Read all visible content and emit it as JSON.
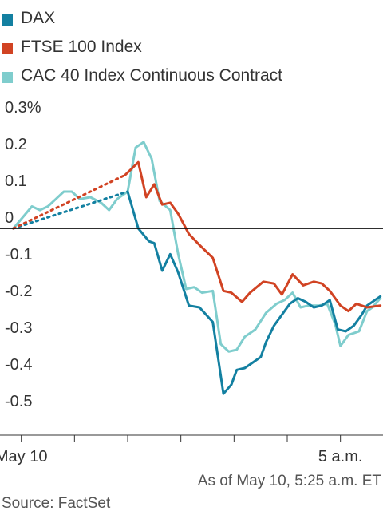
{
  "chart_data": {
    "type": "line",
    "title": "",
    "xlabel": "",
    "ylabel": "",
    "ylim": [
      -0.53,
      0.3
    ],
    "y_ticks": [
      {
        "value": 0.3,
        "label": "0.3%"
      },
      {
        "value": 0.2,
        "label": "0.2"
      },
      {
        "value": 0.1,
        "label": "0.1"
      },
      {
        "value": 0.0,
        "label": "0"
      },
      {
        "value": -0.1,
        "label": "-0.1"
      },
      {
        "value": -0.2,
        "label": "-0.2"
      },
      {
        "value": -0.3,
        "label": "-0.3"
      },
      {
        "value": -0.4,
        "label": "-0.4"
      },
      {
        "value": -0.5,
        "label": "-0.5"
      }
    ],
    "x_ticks": [
      {
        "t": 0,
        "label": "May 10"
      },
      {
        "t": 1,
        "label": ""
      },
      {
        "t": 2,
        "label": ""
      },
      {
        "t": 3,
        "label": ""
      },
      {
        "t": 4,
        "label": ""
      },
      {
        "t": 5,
        "label": ""
      },
      {
        "t": 6,
        "label": "5 a.m."
      }
    ],
    "xlim": [
      -0.4,
      6.8
    ],
    "legend_position": "top-left",
    "grid": false,
    "series": [
      {
        "name": "DAX",
        "color": "#1380a1",
        "dotted": [
          [
            -0.15,
            0.0
          ],
          [
            2.0,
            0.1
          ]
        ],
        "values": [
          [
            2.0,
            0.1
          ],
          [
            2.2,
            0.0
          ],
          [
            2.4,
            -0.035
          ],
          [
            2.5,
            -0.04
          ],
          [
            2.65,
            -0.115
          ],
          [
            2.8,
            -0.07
          ],
          [
            2.95,
            -0.12
          ],
          [
            3.15,
            -0.21
          ],
          [
            3.35,
            -0.215
          ],
          [
            3.6,
            -0.255
          ],
          [
            3.8,
            -0.45
          ],
          [
            3.95,
            -0.425
          ],
          [
            4.05,
            -0.385
          ],
          [
            4.2,
            -0.38
          ],
          [
            4.35,
            -0.365
          ],
          [
            4.5,
            -0.35
          ],
          [
            4.6,
            -0.31
          ],
          [
            4.75,
            -0.265
          ],
          [
            4.9,
            -0.235
          ],
          [
            5.05,
            -0.205
          ],
          [
            5.2,
            -0.19
          ],
          [
            5.35,
            -0.2
          ],
          [
            5.5,
            -0.215
          ],
          [
            5.65,
            -0.21
          ],
          [
            5.8,
            -0.195
          ],
          [
            5.95,
            -0.275
          ],
          [
            6.1,
            -0.28
          ],
          [
            6.25,
            -0.265
          ],
          [
            6.4,
            -0.235
          ],
          [
            6.5,
            -0.21
          ],
          [
            6.6,
            -0.2
          ],
          [
            6.75,
            -0.185
          ]
        ]
      },
      {
        "name": "FTSE 100 Index",
        "color": "#d14323",
        "dotted": [
          [
            -0.15,
            0.0
          ],
          [
            1.95,
            0.145
          ]
        ],
        "values": [
          [
            1.95,
            0.145
          ],
          [
            2.2,
            0.18
          ],
          [
            2.35,
            0.085
          ],
          [
            2.5,
            0.12
          ],
          [
            2.65,
            0.065
          ],
          [
            2.8,
            0.07
          ],
          [
            2.95,
            0.04
          ],
          [
            3.15,
            -0.015
          ],
          [
            3.35,
            -0.045
          ],
          [
            3.6,
            -0.08
          ],
          [
            3.8,
            -0.17
          ],
          [
            3.95,
            -0.175
          ],
          [
            4.15,
            -0.2
          ],
          [
            4.3,
            -0.175
          ],
          [
            4.55,
            -0.145
          ],
          [
            4.75,
            -0.15
          ],
          [
            4.9,
            -0.18
          ],
          [
            5.1,
            -0.125
          ],
          [
            5.3,
            -0.155
          ],
          [
            5.5,
            -0.145
          ],
          [
            5.65,
            -0.15
          ],
          [
            5.8,
            -0.17
          ],
          [
            6.0,
            -0.21
          ],
          [
            6.15,
            -0.225
          ],
          [
            6.3,
            -0.205
          ],
          [
            6.5,
            -0.215
          ],
          [
            6.75,
            -0.21
          ]
        ]
      },
      {
        "name": "CAC 40 Index Continuous Contract",
        "color": "#7fcdcd",
        "values": [
          [
            -0.15,
            0.0
          ],
          [
            0.2,
            0.06
          ],
          [
            0.35,
            0.05
          ],
          [
            0.5,
            0.06
          ],
          [
            0.65,
            0.08
          ],
          [
            0.8,
            0.1
          ],
          [
            0.95,
            0.1
          ],
          [
            1.1,
            0.08
          ],
          [
            1.3,
            0.085
          ],
          [
            1.5,
            0.07
          ],
          [
            1.65,
            0.05
          ],
          [
            1.8,
            0.08
          ],
          [
            2.0,
            0.1
          ],
          [
            2.15,
            0.22
          ],
          [
            2.3,
            0.235
          ],
          [
            2.45,
            0.19
          ],
          [
            2.6,
            0.075
          ],
          [
            2.8,
            0.05
          ],
          [
            2.95,
            -0.07
          ],
          [
            3.1,
            -0.165
          ],
          [
            3.25,
            -0.16
          ],
          [
            3.4,
            -0.175
          ],
          [
            3.6,
            -0.17
          ],
          [
            3.75,
            -0.315
          ],
          [
            3.9,
            -0.335
          ],
          [
            4.05,
            -0.33
          ],
          [
            4.2,
            -0.295
          ],
          [
            4.4,
            -0.275
          ],
          [
            4.6,
            -0.23
          ],
          [
            4.8,
            -0.205
          ],
          [
            4.95,
            -0.195
          ],
          [
            5.1,
            -0.175
          ],
          [
            5.25,
            -0.215
          ],
          [
            5.4,
            -0.21
          ],
          [
            5.6,
            -0.21
          ],
          [
            5.75,
            -0.205
          ],
          [
            5.9,
            -0.26
          ],
          [
            6.0,
            -0.32
          ],
          [
            6.15,
            -0.29
          ],
          [
            6.35,
            -0.28
          ],
          [
            6.5,
            -0.225
          ],
          [
            6.6,
            -0.215
          ],
          [
            6.75,
            -0.19
          ]
        ]
      }
    ]
  },
  "footer": {
    "timestamp": "As of May 10, 5:25 a.m. ET",
    "source": "Source: FactSet"
  }
}
